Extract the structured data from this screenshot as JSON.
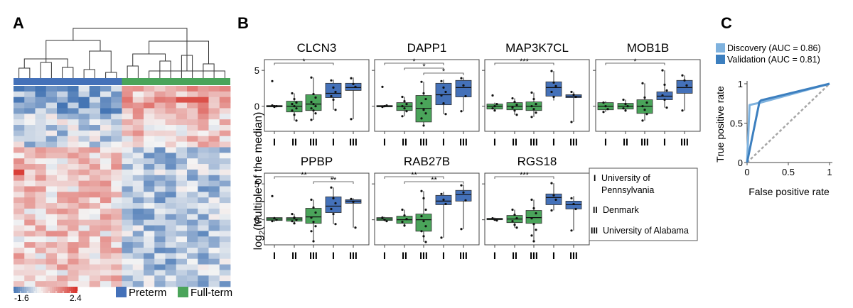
{
  "panels": {
    "a": "A",
    "b": "B",
    "c": "C"
  },
  "colors": {
    "preterm": "#4471b9",
    "fullterm": "#4aa45a",
    "roc_discovery": "#7fb2de",
    "roc_validation": "#3c7fbf",
    "diagonal": "#a7a7a7"
  },
  "heatmap": {
    "colorbar_min": "-1.6",
    "colorbar_max": "2.4",
    "legend": [
      {
        "label": "Preterm",
        "color": "#4471b9"
      },
      {
        "label": "Full-term",
        "color": "#4aa45a"
      }
    ]
  },
  "cohort_legend": [
    {
      "numeral": "I",
      "label_lines": [
        "University of",
        "Pennsylvania"
      ]
    },
    {
      "numeral": "II",
      "label_lines": [
        "Denmark"
      ]
    },
    {
      "numeral": "III",
      "label_lines": [
        "University of Alabama"
      ]
    }
  ],
  "chart_data": [
    {
      "type": "heatmap",
      "rows": 36,
      "columns": 20,
      "column_groups": [
        {
          "name": "Preterm",
          "count": 10
        },
        {
          "name": "Full-term",
          "count": 10
        }
      ],
      "color_range": [
        -1.6,
        2.4
      ]
    },
    {
      "type": "box",
      "ylabel": "log2(Multiple of the median)",
      "yticks": [
        0,
        5
      ],
      "ylim": [
        -3.5,
        6.5
      ],
      "x_tick_labels": [
        "I",
        "II",
        "III",
        "I",
        "III"
      ],
      "box_groups": [
        "Full-term",
        "Full-term",
        "Full-term",
        "Preterm",
        "Preterm"
      ],
      "genes": [
        {
          "name": "CLCN3",
          "boxes": [
            {
              "q1": -0.1,
              "median": 0,
              "q3": 0.1,
              "lo": -0.1,
              "hi": 0.1,
              "points": [
                3.5,
                0,
                0,
                0.1,
                -0.1
              ]
            },
            {
              "q1": -0.8,
              "median": 0,
              "q3": 0.7,
              "lo": -2,
              "hi": 1.8,
              "points": [
                1.8,
                1,
                0.5,
                0.3,
                0,
                -0.3,
                -0.6,
                -1.2,
                -2
              ]
            },
            {
              "q1": -0.6,
              "median": 0.3,
              "q3": 1.6,
              "lo": -1.9,
              "hi": 4,
              "points": [
                4,
                1.7,
                1.2,
                0.6,
                0.3,
                0,
                -0.3,
                -0.6,
                -1,
                -1.9
              ]
            },
            {
              "q1": 1.2,
              "median": 1.8,
              "q3": 3.2,
              "lo": -0.5,
              "hi": 3.7,
              "points": [
                3.6,
                2.6,
                2,
                1.4,
                0.9,
                -0.5
              ]
            },
            {
              "q1": 2.2,
              "median": 2.6,
              "q3": 3.2,
              "lo": -1.8,
              "hi": 4,
              "points": [
                3.9,
                3.1,
                2.7,
                -1.8
              ]
            }
          ],
          "significance": [
            {
              "from": 0,
              "to": 3,
              "label": "*"
            }
          ]
        },
        {
          "name": "DAPP1",
          "boxes": [
            {
              "q1": -0.1,
              "median": 0,
              "q3": 0.1,
              "lo": -0.1,
              "hi": 0.1,
              "points": [
                2.7,
                0,
                0.1,
                -0.1
              ]
            },
            {
              "q1": -0.6,
              "median": 0,
              "q3": 0.5,
              "lo": -1.4,
              "hi": 1.3,
              "points": [
                1.3,
                0.7,
                0.3,
                0,
                -0.3,
                -0.7,
                -1.4
              ]
            },
            {
              "q1": -2.2,
              "median": -0.3,
              "q3": 1.5,
              "lo": -2.7,
              "hi": 3.4,
              "points": [
                3.4,
                1.8,
                1,
                0.4,
                -0.5,
                -1,
                -1.7,
                -2.7
              ]
            },
            {
              "q1": 0.2,
              "median": 1.6,
              "q3": 3.2,
              "lo": -1.1,
              "hi": 3.7,
              "points": [
                3.5,
                2.6,
                2,
                1.5,
                0.4,
                -1.1
              ]
            },
            {
              "q1": 1.3,
              "median": 2.6,
              "q3": 3.6,
              "lo": -0.7,
              "hi": 4,
              "points": [
                3.9,
                2.9,
                1.4,
                -0.7
              ]
            }
          ],
          "significance": [
            {
              "from": 0,
              "to": 3,
              "label": "*"
            },
            {
              "from": 1,
              "to": 3,
              "label": "*"
            },
            {
              "from": 2,
              "to": 4,
              "label": "*"
            }
          ]
        },
        {
          "name": "MAP3K7CL",
          "boxes": [
            {
              "q1": -0.4,
              "median": 0,
              "q3": 0.3,
              "lo": -0.6,
              "hi": 0.5,
              "points": [
                1.5,
                0,
                0.3,
                -0.3,
                -0.6
              ]
            },
            {
              "q1": -0.5,
              "median": 0,
              "q3": 0.5,
              "lo": -1.2,
              "hi": 1.1,
              "points": [
                1.1,
                0.6,
                0.2,
                -0.2,
                -0.6,
                -1.2
              ]
            },
            {
              "q1": -0.6,
              "median": 0,
              "q3": 0.6,
              "lo": -1.5,
              "hi": 1.9,
              "points": [
                1.9,
                1,
                0.3,
                0,
                -0.4,
                -0.9,
                -1.5
              ]
            },
            {
              "q1": 1.4,
              "median": 2.6,
              "q3": 3.4,
              "lo": 0.8,
              "hi": 4.9,
              "points": [
                4.9,
                3.3,
                2.8,
                2,
                1.3
              ]
            },
            {
              "q1": 1.2,
              "median": 1.4,
              "q3": 1.6,
              "lo": -2.2,
              "hi": 2,
              "points": [
                2,
                1.6,
                1.3,
                -2.2
              ]
            }
          ],
          "significance": [
            {
              "from": 0,
              "to": 3,
              "label": "***"
            }
          ]
        },
        {
          "name": "MOB1B",
          "boxes": [
            {
              "q1": -0.5,
              "median": 0,
              "q3": 0.5,
              "lo": -0.8,
              "hi": 0.7,
              "points": [
                0.5,
                0,
                -0.4,
                -0.8
              ]
            },
            {
              "q1": -0.4,
              "median": 0,
              "q3": 0.4,
              "lo": -0.8,
              "hi": 0.9,
              "points": [
                0.9,
                0.3,
                0,
                -0.3,
                -0.6
              ]
            },
            {
              "q1": -1,
              "median": 0,
              "q3": 0.9,
              "lo": -2,
              "hi": 3.2,
              "points": [
                3.2,
                1.2,
                0.5,
                0,
                -0.5,
                -1.1,
                -2
              ]
            },
            {
              "q1": 0.9,
              "median": 1.4,
              "q3": 2,
              "lo": -0.2,
              "hi": 5,
              "points": [
                5,
                3,
                2.2,
                1.5,
                0.9,
                -0.2
              ]
            },
            {
              "q1": 1.8,
              "median": 2.6,
              "q3": 3.6,
              "lo": -0.6,
              "hi": 4.3,
              "points": [
                4.3,
                3.6,
                2.9,
                -0.6
              ]
            }
          ],
          "significance": [
            {
              "from": 0,
              "to": 3,
              "label": "*"
            }
          ]
        },
        {
          "name": "PPBP",
          "boxes": [
            {
              "q1": -0.1,
              "median": 0.1,
              "q3": 0.3,
              "lo": -0.3,
              "hi": 0.4,
              "points": [
                3.3,
                0.2,
                0,
                -0.2
              ]
            },
            {
              "q1": -0.2,
              "median": 0.1,
              "q3": 0.3,
              "lo": -0.5,
              "hi": 0.8,
              "points": [
                0.8,
                0.3,
                0,
                -0.2,
                -0.5
              ]
            },
            {
              "q1": -0.5,
              "median": 0.4,
              "q3": 1.6,
              "lo": -3,
              "hi": 2.8,
              "points": [
                2.8,
                1.7,
                1,
                0.3,
                -0.3,
                -0.9,
                -1.6,
                -3
              ]
            },
            {
              "q1": 1,
              "median": 1.9,
              "q3": 3.2,
              "lo": -0.6,
              "hi": 4.5,
              "points": [
                4.5,
                3,
                2.3,
                1.5,
                0.8,
                -0.6
              ]
            },
            {
              "q1": 2.3,
              "median": 2.6,
              "q3": 2.8,
              "lo": -1.1,
              "hi": 3,
              "points": [
                2.9,
                2.5,
                -1.1
              ]
            }
          ],
          "significance": [
            {
              "from": 0,
              "to": 3,
              "label": "**"
            },
            {
              "from": 2,
              "to": 4,
              "label": "**"
            }
          ]
        },
        {
          "name": "RAB27B",
          "boxes": [
            {
              "q1": -0.1,
              "median": 0.1,
              "q3": 0.3,
              "lo": -0.2,
              "hi": 0.4,
              "points": [
                0.3,
                0,
                -0.2
              ]
            },
            {
              "q1": -0.5,
              "median": 0,
              "q3": 0.5,
              "lo": -1,
              "hi": 1.4,
              "points": [
                1.4,
                0.6,
                0.1,
                -0.3,
                -0.8
              ]
            },
            {
              "q1": -1.6,
              "median": 0,
              "q3": 0.8,
              "lo": -3.1,
              "hi": 4,
              "points": [
                4,
                3,
                1.4,
                0.5,
                -0.2,
                -0.9,
                -1.6,
                -2.3,
                -3.1
              ]
            },
            {
              "q1": 2.1,
              "median": 2.6,
              "q3": 3.4,
              "lo": -2.5,
              "hi": 3.9,
              "points": [
                3.6,
                2.8,
                2.2,
                -2.5
              ]
            },
            {
              "q1": 2.6,
              "median": 3.5,
              "q3": 4.1,
              "lo": -1.3,
              "hi": 4.9,
              "points": [
                4.8,
                3.8,
                2.7,
                -1.3
              ]
            }
          ],
          "significance": [
            {
              "from": 0,
              "to": 3,
              "label": "**"
            },
            {
              "from": 1,
              "to": 4,
              "label": "**"
            }
          ]
        },
        {
          "name": "RGS18",
          "boxes": [
            {
              "q1": 0,
              "median": 0.1,
              "q3": 0.2,
              "lo": -0.1,
              "hi": 0.3,
              "points": [
                0.2,
                0,
                -0.1
              ]
            },
            {
              "q1": -0.4,
              "median": 0.1,
              "q3": 0.6,
              "lo": -1.1,
              "hi": 1.4,
              "points": [
                1.4,
                0.7,
                0.2,
                -0.2,
                -0.7,
                -1.1
              ]
            },
            {
              "q1": -0.5,
              "median": 0.3,
              "q3": 1.3,
              "lo": -3,
              "hi": 2.8,
              "points": [
                2.8,
                1.6,
                0.9,
                0.2,
                -0.6,
                -1.4,
                -2.2,
                -3
              ]
            },
            {
              "q1": 2.1,
              "median": 3.1,
              "q3": 3.6,
              "lo": 1.3,
              "hi": 5.1,
              "points": [
                5.1,
                3.4,
                2.8,
                1.3
              ]
            },
            {
              "q1": 1.5,
              "median": 2.1,
              "q3": 2.6,
              "lo": -1.5,
              "hi": 3.3,
              "points": [
                3,
                2.2,
                1.5,
                -1.5
              ]
            }
          ],
          "significance": [
            {
              "from": 0,
              "to": 3,
              "label": "***"
            }
          ]
        }
      ]
    },
    {
      "type": "line",
      "xlabel": "False positive rate",
      "ylabel": "True positive rate",
      "xticks": [
        "0",
        "0.5",
        "1"
      ],
      "yticks": [
        "0",
        "0.5",
        "1"
      ],
      "xlim": [
        0,
        1
      ],
      "ylim": [
        0,
        1
      ],
      "legend_position": "top",
      "series": [
        {
          "name": "Discovery (AUC = 0.86)",
          "x": [
            0,
            0.03,
            0.16,
            1
          ],
          "y": [
            0,
            0.73,
            0.76,
            1
          ]
        },
        {
          "name": "Validation (AUC = 0.81)",
          "x": [
            0,
            0.15,
            0.17,
            1
          ],
          "y": [
            0,
            0.77,
            0.79,
            1
          ]
        },
        {
          "name": "",
          "x": [
            0,
            1
          ],
          "y": [
            0,
            1
          ]
        }
      ]
    }
  ]
}
